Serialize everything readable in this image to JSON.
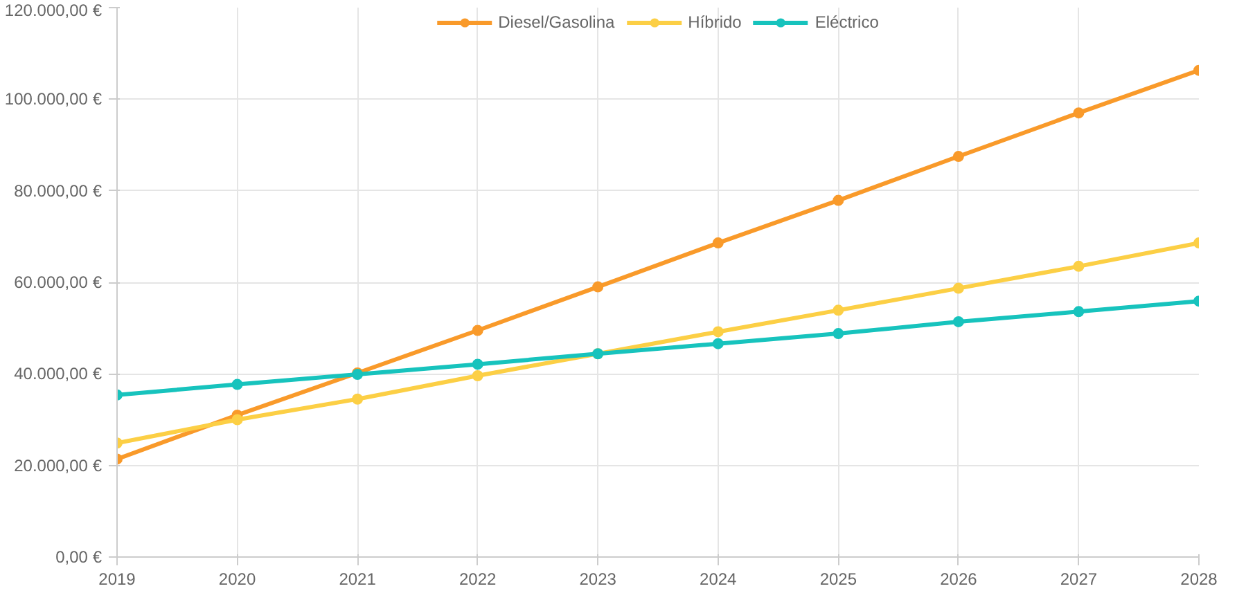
{
  "chart_data": {
    "type": "line",
    "x": [
      2019,
      2020,
      2021,
      2022,
      2023,
      2024,
      2025,
      2026,
      2027,
      2028
    ],
    "series": [
      {
        "name": "Diesel/Gasolina",
        "color": "#f99a2a",
        "values": [
          21400,
          31000,
          40200,
          49500,
          59000,
          68600,
          77900,
          87500,
          97000,
          106300
        ]
      },
      {
        "name": "Híbrido",
        "color": "#fccf45",
        "values": [
          24900,
          30000,
          34500,
          39600,
          44400,
          49200,
          53900,
          58700,
          63500,
          68600
        ]
      },
      {
        "name": "Eléctrico",
        "color": "#17c3bd",
        "values": [
          35400,
          37700,
          39900,
          42100,
          44400,
          46600,
          48800,
          51400,
          53600,
          55900
        ]
      }
    ],
    "xlim": [
      2019,
      2028
    ],
    "xticks": [
      2019,
      2020,
      2021,
      2022,
      2023,
      2024,
      2025,
      2026,
      2027,
      2028
    ],
    "ylim": [
      0,
      120000
    ],
    "yticks": [
      {
        "value": 0,
        "label": "0,00 €"
      },
      {
        "value": 20000,
        "label": "20.000,00 €"
      },
      {
        "value": 40000,
        "label": "40.000,00 €"
      },
      {
        "value": 60000,
        "label": "60.000,00 €"
      },
      {
        "value": 80000,
        "label": "80.000,00 €"
      },
      {
        "value": 100000,
        "label": "100.000,00 €"
      },
      {
        "value": 120000,
        "label": "120.000,00 €"
      }
    ],
    "grid": true,
    "legend": "top",
    "marker": "circle",
    "line_style": "solid"
  }
}
